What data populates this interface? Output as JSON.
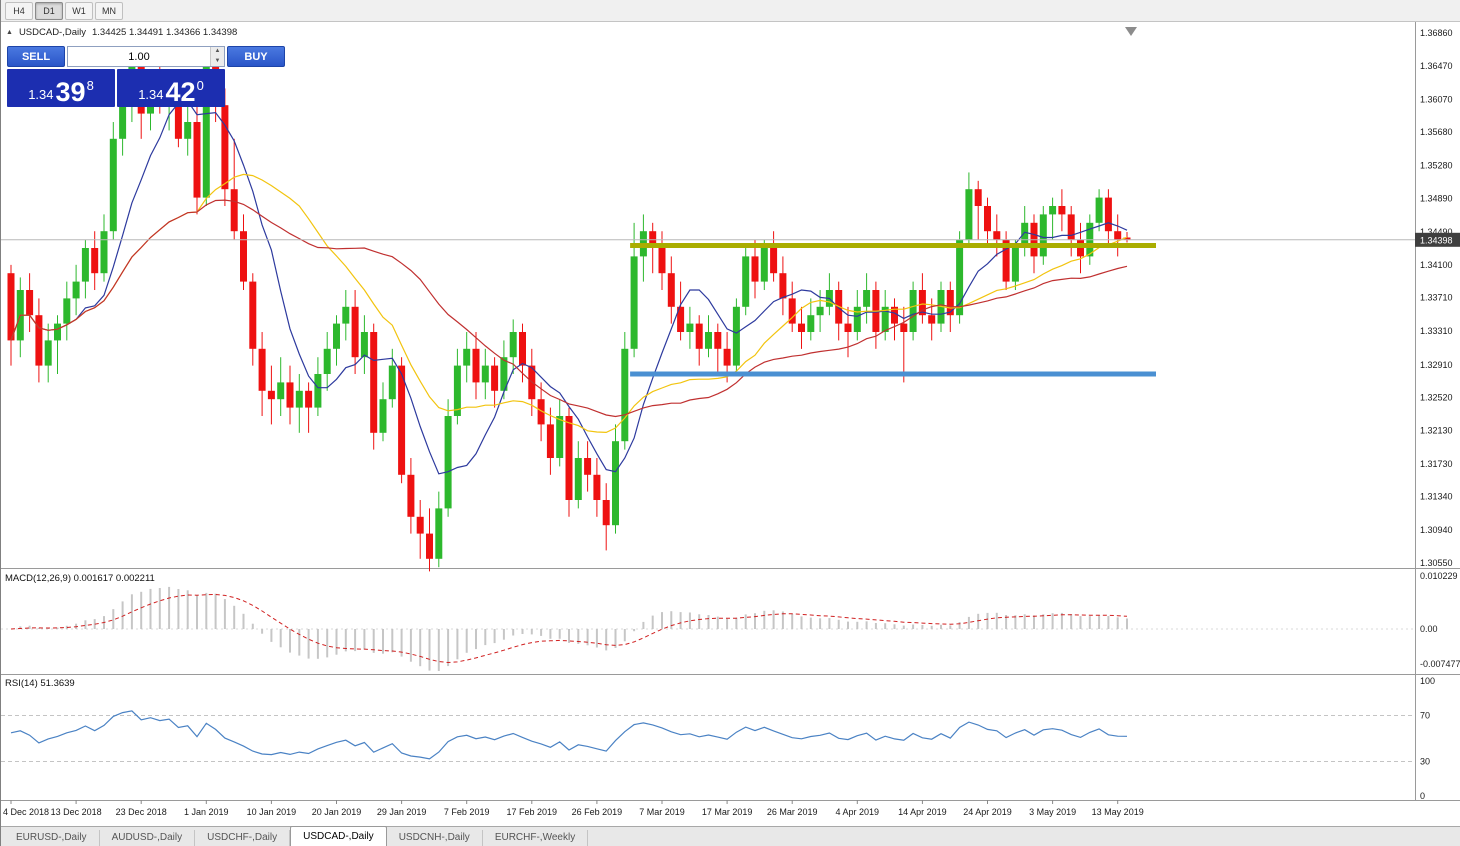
{
  "toolbar": {
    "timeframes": [
      {
        "label": "H4",
        "active": false
      },
      {
        "label": "D1",
        "active": true
      },
      {
        "label": "W1",
        "active": false
      },
      {
        "label": "MN",
        "active": false
      }
    ]
  },
  "chart_header": {
    "symbol": "USDCAD-,Daily",
    "ohlc": "1.34425 1.34491 1.34366 1.34398"
  },
  "trade_panel": {
    "sell_label": "SELL",
    "buy_label": "BUY",
    "volume": "1.00",
    "sell_price_big": "1.34",
    "sell_price_mid": "39",
    "sell_price_sup": "8",
    "buy_price_big": "1.34",
    "buy_price_mid": "42",
    "buy_price_sup": "0"
  },
  "chart_data": {
    "type": "candlestick",
    "title": "USDCAD-,Daily",
    "symbol": "USDCAD-",
    "timeframe": "Daily",
    "ohlc_display": {
      "open": "1.34425",
      "high": "1.34491",
      "low": "1.34366",
      "close": "1.34398"
    },
    "current_price": 1.34398,
    "bull_color": "#2db82d",
    "bear_color": "#ee1111",
    "price_line_color": "#b8b8b8",
    "badge_color": "#3f3f3f",
    "price_axis_labels": [
      "1.36860",
      "1.36470",
      "1.36070",
      "1.35680",
      "1.35280",
      "1.34890",
      "1.34490",
      "1.34100",
      "1.33710",
      "1.33310",
      "1.32910",
      "1.32520",
      "1.32130",
      "1.31730",
      "1.31340",
      "1.30940",
      "1.30550"
    ],
    "x_axis_labels": [
      {
        "label": "4 Dec 2018",
        "index": 0
      },
      {
        "label": "13 Dec 2018",
        "index": 7
      },
      {
        "label": "23 Dec 2018",
        "index": 14
      },
      {
        "label": "1 Jan 2019",
        "index": 21
      },
      {
        "label": "10 Jan 2019",
        "index": 28
      },
      {
        "label": "20 Jan 2019",
        "index": 35
      },
      {
        "label": "29 Jan 2019",
        "index": 42
      },
      {
        "label": "7 Feb 2019",
        "index": 49
      },
      {
        "label": "17 Feb 2019",
        "index": 56
      },
      {
        "label": "26 Feb 2019",
        "index": 63
      },
      {
        "label": "7 Mar 2019",
        "index": 70
      },
      {
        "label": "17 Mar 2019",
        "index": 77
      },
      {
        "label": "26 Mar 2019",
        "index": 84
      },
      {
        "label": "4 Apr 2019",
        "index": 91
      },
      {
        "label": "14 Apr 2019",
        "index": 98
      },
      {
        "label": "24 Apr 2019",
        "index": 105
      },
      {
        "label": "3 May 2019",
        "index": 112
      },
      {
        "label": "13 May 2019",
        "index": 119
      }
    ],
    "candles": [
      [
        1.34,
        1.341,
        1.329,
        1.332
      ],
      [
        1.332,
        1.3395,
        1.33,
        1.338
      ],
      [
        1.338,
        1.34,
        1.333,
        1.335
      ],
      [
        1.335,
        1.337,
        1.327,
        1.329
      ],
      [
        1.329,
        1.334,
        1.327,
        1.332
      ],
      [
        1.332,
        1.335,
        1.328,
        1.334
      ],
      [
        1.334,
        1.339,
        1.332,
        1.337
      ],
      [
        1.337,
        1.341,
        1.335,
        1.339
      ],
      [
        1.339,
        1.344,
        1.337,
        1.343
      ],
      [
        1.343,
        1.345,
        1.338,
        1.34
      ],
      [
        1.34,
        1.347,
        1.339,
        1.345
      ],
      [
        1.345,
        1.358,
        1.344,
        1.356
      ],
      [
        1.356,
        1.364,
        1.354,
        1.362
      ],
      [
        1.362,
        1.3664,
        1.358,
        1.365
      ],
      [
        1.365,
        1.366,
        1.356,
        1.359
      ],
      [
        1.359,
        1.364,
        1.357,
        1.362
      ],
      [
        1.362,
        1.365,
        1.359,
        1.36
      ],
      [
        1.36,
        1.363,
        1.357,
        1.362
      ],
      [
        1.362,
        1.364,
        1.355,
        1.356
      ],
      [
        1.356,
        1.36,
        1.354,
        1.358
      ],
      [
        1.358,
        1.36,
        1.347,
        1.349
      ],
      [
        1.349,
        1.3664,
        1.348,
        1.366
      ],
      [
        1.366,
        1.367,
        1.358,
        1.36
      ],
      [
        1.36,
        1.362,
        1.348,
        1.35
      ],
      [
        1.35,
        1.356,
        1.344,
        1.345
      ],
      [
        1.345,
        1.347,
        1.338,
        1.339
      ],
      [
        1.339,
        1.34,
        1.329,
        1.331
      ],
      [
        1.331,
        1.333,
        1.323,
        1.326
      ],
      [
        1.326,
        1.329,
        1.322,
        1.325
      ],
      [
        1.325,
        1.33,
        1.323,
        1.327
      ],
      [
        1.327,
        1.329,
        1.322,
        1.324
      ],
      [
        1.324,
        1.328,
        1.321,
        1.326
      ],
      [
        1.326,
        1.327,
        1.321,
        1.324
      ],
      [
        1.324,
        1.33,
        1.323,
        1.328
      ],
      [
        1.328,
        1.333,
        1.326,
        1.331
      ],
      [
        1.331,
        1.335,
        1.329,
        1.334
      ],
      [
        1.334,
        1.338,
        1.332,
        1.336
      ],
      [
        1.336,
        1.338,
        1.328,
        1.33
      ],
      [
        1.33,
        1.335,
        1.328,
        1.333
      ],
      [
        1.333,
        1.334,
        1.319,
        1.321
      ],
      [
        1.321,
        1.327,
        1.32,
        1.325
      ],
      [
        1.325,
        1.331,
        1.324,
        1.329
      ],
      [
        1.329,
        1.33,
        1.315,
        1.316
      ],
      [
        1.316,
        1.318,
        1.309,
        1.311
      ],
      [
        1.311,
        1.313,
        1.306,
        1.309
      ],
      [
        1.309,
        1.312,
        1.3045,
        1.306
      ],
      [
        1.306,
        1.314,
        1.305,
        1.312
      ],
      [
        1.312,
        1.325,
        1.311,
        1.323
      ],
      [
        1.323,
        1.331,
        1.322,
        1.329
      ],
      [
        1.329,
        1.333,
        1.327,
        1.331
      ],
      [
        1.331,
        1.333,
        1.325,
        1.327
      ],
      [
        1.327,
        1.331,
        1.325,
        1.329
      ],
      [
        1.329,
        1.33,
        1.324,
        1.326
      ],
      [
        1.326,
        1.332,
        1.325,
        1.33
      ],
      [
        1.33,
        1.3345,
        1.328,
        1.333
      ],
      [
        1.333,
        1.334,
        1.327,
        1.329
      ],
      [
        1.329,
        1.331,
        1.323,
        1.325
      ],
      [
        1.325,
        1.327,
        1.32,
        1.322
      ],
      [
        1.322,
        1.324,
        1.316,
        1.318
      ],
      [
        1.318,
        1.325,
        1.317,
        1.323
      ],
      [
        1.323,
        1.324,
        1.311,
        1.313
      ],
      [
        1.313,
        1.32,
        1.312,
        1.318
      ],
      [
        1.318,
        1.32,
        1.314,
        1.316
      ],
      [
        1.316,
        1.318,
        1.311,
        1.313
      ],
      [
        1.313,
        1.315,
        1.307,
        1.31
      ],
      [
        1.31,
        1.322,
        1.309,
        1.32
      ],
      [
        1.32,
        1.333,
        1.319,
        1.331
      ],
      [
        1.331,
        1.346,
        1.33,
        1.342
      ],
      [
        1.342,
        1.347,
        1.339,
        1.345
      ],
      [
        1.345,
        1.346,
        1.34,
        1.343
      ],
      [
        1.343,
        1.345,
        1.338,
        1.34
      ],
      [
        1.34,
        1.342,
        1.334,
        1.336
      ],
      [
        1.336,
        1.339,
        1.332,
        1.333
      ],
      [
        1.333,
        1.336,
        1.331,
        1.334
      ],
      [
        1.334,
        1.335,
        1.329,
        1.331
      ],
      [
        1.331,
        1.335,
        1.33,
        1.333
      ],
      [
        1.333,
        1.334,
        1.328,
        1.331
      ],
      [
        1.331,
        1.333,
        1.327,
        1.329
      ],
      [
        1.329,
        1.337,
        1.328,
        1.336
      ],
      [
        1.336,
        1.343,
        1.335,
        1.342
      ],
      [
        1.342,
        1.344,
        1.337,
        1.339
      ],
      [
        1.339,
        1.344,
        1.338,
        1.343
      ],
      [
        1.343,
        1.345,
        1.339,
        1.34
      ],
      [
        1.34,
        1.342,
        1.335,
        1.337
      ],
      [
        1.337,
        1.339,
        1.333,
        1.334
      ],
      [
        1.334,
        1.336,
        1.331,
        1.333
      ],
      [
        1.333,
        1.337,
        1.332,
        1.335
      ],
      [
        1.335,
        1.338,
        1.333,
        1.336
      ],
      [
        1.336,
        1.34,
        1.335,
        1.338
      ],
      [
        1.338,
        1.339,
        1.332,
        1.334
      ],
      [
        1.334,
        1.336,
        1.33,
        1.333
      ],
      [
        1.333,
        1.338,
        1.332,
        1.336
      ],
      [
        1.336,
        1.34,
        1.334,
        1.338
      ],
      [
        1.338,
        1.339,
        1.331,
        1.333
      ],
      [
        1.333,
        1.338,
        1.332,
        1.336
      ],
      [
        1.336,
        1.337,
        1.332,
        1.334
      ],
      [
        1.334,
        1.336,
        1.327,
        1.333
      ],
      [
        1.333,
        1.339,
        1.332,
        1.338
      ],
      [
        1.338,
        1.34,
        1.334,
        1.335
      ],
      [
        1.335,
        1.337,
        1.332,
        1.334
      ],
      [
        1.334,
        1.339,
        1.333,
        1.338
      ],
      [
        1.338,
        1.339,
        1.333,
        1.335
      ],
      [
        1.335,
        1.345,
        1.334,
        1.344
      ],
      [
        1.344,
        1.352,
        1.343,
        1.35
      ],
      [
        1.35,
        1.351,
        1.344,
        1.348
      ],
      [
        1.348,
        1.349,
        1.343,
        1.345
      ],
      [
        1.345,
        1.347,
        1.342,
        1.344
      ],
      [
        1.344,
        1.345,
        1.338,
        1.339
      ],
      [
        1.339,
        1.344,
        1.338,
        1.343
      ],
      [
        1.343,
        1.348,
        1.342,
        1.346
      ],
      [
        1.346,
        1.347,
        1.34,
        1.342
      ],
      [
        1.342,
        1.348,
        1.341,
        1.347
      ],
      [
        1.347,
        1.349,
        1.344,
        1.348
      ],
      [
        1.348,
        1.35,
        1.345,
        1.347
      ],
      [
        1.347,
        1.348,
        1.342,
        1.344
      ],
      [
        1.344,
        1.346,
        1.34,
        1.342
      ],
      [
        1.342,
        1.347,
        1.341,
        1.346
      ],
      [
        1.346,
        1.35,
        1.345,
        1.349
      ],
      [
        1.349,
        1.35,
        1.343,
        1.345
      ],
      [
        1.345,
        1.347,
        1.342,
        1.344
      ],
      [
        1.34425,
        1.34491,
        1.34366,
        1.34398
      ]
    ],
    "moving_averages": [
      {
        "name": "ma-fast",
        "period": 8,
        "method": "sma",
        "color": "#2d3a9e"
      },
      {
        "name": "ma-mid",
        "period": 21,
        "method": "sma",
        "color": "#f2c40f"
      },
      {
        "name": "ma-slow",
        "period": 34,
        "method": "sma",
        "color": "#c03030"
      }
    ],
    "drawings": [
      {
        "name": "resistance-ray",
        "type": "horizontal-ray",
        "price": 1.3433,
        "from_index": 67,
        "color": "#aaad00",
        "width": 5
      },
      {
        "name": "support-ray",
        "type": "horizontal-ray",
        "price": 1.328,
        "from_index": 67,
        "color": "#4a90d2",
        "width": 5
      }
    ],
    "indicators": [
      {
        "name": "MACD",
        "label": "MACD(12,26,9) 0.001617 0.002211",
        "fast": 12,
        "slow": 26,
        "signal": 9,
        "value": "0.001617",
        "signal_value": "0.002211",
        "axis_labels": [
          "0.010229",
          "0.00",
          "-0.007477"
        ],
        "hist_color": "#c6c6c6",
        "signal_color": "#d02020"
      },
      {
        "name": "RSI",
        "label": "RSI(14) 51.3639",
        "period": 14,
        "value": "51.3639",
        "axis_labels": [
          "100",
          "70",
          "30",
          "0"
        ],
        "levels": [
          70,
          30
        ],
        "line_color": "#4a82c4"
      }
    ]
  },
  "tabs": [
    {
      "label": "EURUSD-,Daily",
      "active": false
    },
    {
      "label": "AUDUSD-,Daily",
      "active": false
    },
    {
      "label": "USDCHF-,Daily",
      "active": false
    },
    {
      "label": "USDCAD-,Daily",
      "active": true
    },
    {
      "label": "USDCNH-,Daily",
      "active": false
    },
    {
      "label": "EURCHF-,Weekly",
      "active": false
    }
  ]
}
